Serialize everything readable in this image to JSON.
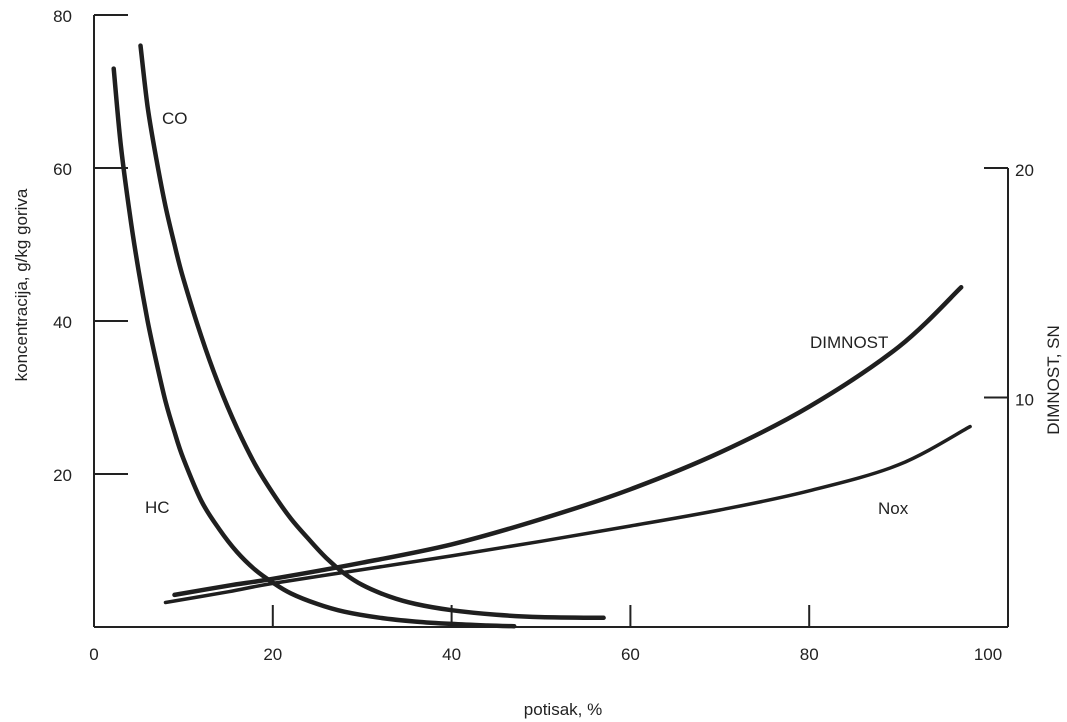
{
  "chart_data": {
    "type": "line",
    "xlabel": "potisak, %",
    "ylabel_left": "koncentracija, g/kg goriva",
    "ylabel_right": "DIMNOST, SN",
    "xlim": [
      0,
      100
    ],
    "ylim_left": [
      0,
      80
    ],
    "ylim_right": [
      0,
      20
    ],
    "x_ticks": [
      0,
      20,
      40,
      60,
      80,
      100
    ],
    "y_ticks_left": [
      20,
      40,
      60,
      80
    ],
    "y_ticks_right": [
      10,
      20
    ],
    "grid": false,
    "series": [
      {
        "name": "CO",
        "axis": "left",
        "points": [
          [
            5.2,
            76
          ],
          [
            6,
            68
          ],
          [
            7,
            61
          ],
          [
            8,
            55
          ],
          [
            9,
            50
          ],
          [
            10,
            45.5
          ],
          [
            12,
            38
          ],
          [
            14,
            31.5
          ],
          [
            16,
            26
          ],
          [
            18,
            21.3
          ],
          [
            20,
            17.5
          ],
          [
            22,
            14.2
          ],
          [
            24,
            11.5
          ],
          [
            26,
            9
          ],
          [
            28,
            7
          ],
          [
            30,
            5.5
          ],
          [
            33,
            4
          ],
          [
            36,
            3
          ],
          [
            40,
            2.2
          ],
          [
            45,
            1.6
          ],
          [
            50,
            1.3
          ],
          [
            57,
            1.2
          ]
        ]
      },
      {
        "name": "HC",
        "axis": "left",
        "points": [
          [
            2.2,
            73
          ],
          [
            3,
            63
          ],
          [
            4,
            54
          ],
          [
            5,
            46.5
          ],
          [
            6,
            40
          ],
          [
            7,
            34.5
          ],
          [
            8,
            29.5
          ],
          [
            9,
            25.5
          ],
          [
            10,
            22
          ],
          [
            12,
            16.5
          ],
          [
            14,
            12.8
          ],
          [
            16,
            9.8
          ],
          [
            18,
            7.5
          ],
          [
            20,
            5.8
          ],
          [
            22,
            4.4
          ],
          [
            25,
            3
          ],
          [
            28,
            2
          ],
          [
            32,
            1.2
          ],
          [
            36,
            0.7
          ],
          [
            40,
            0.4
          ],
          [
            44,
            0.2
          ],
          [
            47,
            0.1
          ]
        ]
      },
      {
        "name": "DIMNOST",
        "axis": "right",
        "points": [
          [
            9,
            1.4
          ],
          [
            15,
            1.8
          ],
          [
            20,
            2.1
          ],
          [
            30,
            2.8
          ],
          [
            40,
            3.6
          ],
          [
            50,
            4.7
          ],
          [
            60,
            6
          ],
          [
            70,
            7.6
          ],
          [
            80,
            9.6
          ],
          [
            90,
            12.2
          ],
          [
            97,
            14.8
          ]
        ]
      },
      {
        "name": "Nox",
        "axis": "left",
        "points": [
          [
            8,
            3.2
          ],
          [
            15,
            4.6
          ],
          [
            20,
            5.7
          ],
          [
            30,
            7.5
          ],
          [
            40,
            9.3
          ],
          [
            50,
            11.2
          ],
          [
            60,
            13.2
          ],
          [
            70,
            15.3
          ],
          [
            80,
            17.8
          ],
          [
            90,
            21.2
          ],
          [
            98,
            26.2
          ]
        ]
      }
    ]
  }
}
